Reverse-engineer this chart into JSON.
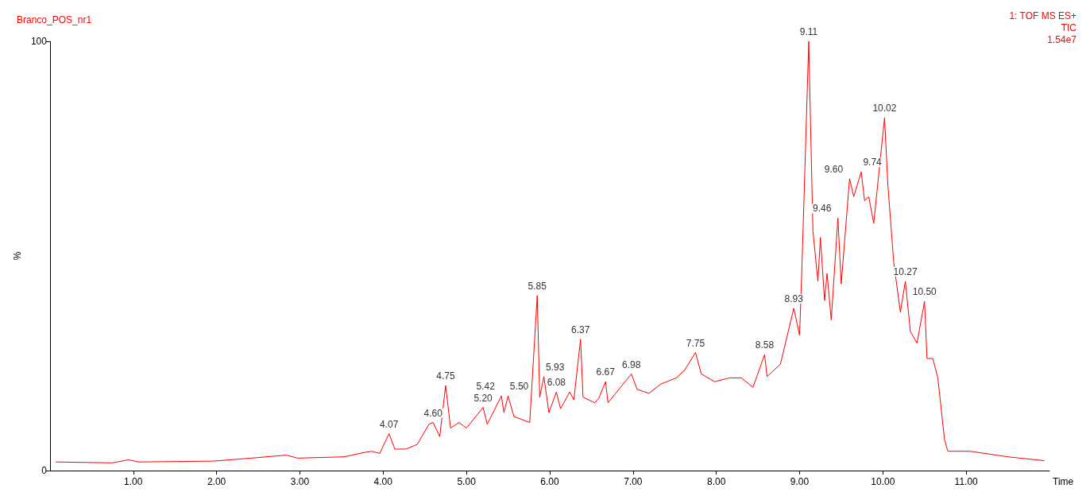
{
  "chart_data": {
    "type": "line",
    "title": "Branco_POS_nr1",
    "xlabel": "Time",
    "ylabel": "%",
    "x": [
      0.07,
      0.75,
      0.94,
      1.07,
      1.96,
      2.42,
      2.84,
      2.97,
      3.53,
      3.72,
      3.86,
      3.96,
      4.07,
      4.14,
      4.27,
      4.41,
      4.55,
      4.6,
      4.68,
      4.75,
      4.81,
      4.91,
      5.0,
      5.2,
      5.25,
      5.42,
      5.45,
      5.5,
      5.57,
      5.76,
      5.85,
      5.88,
      5.93,
      5.99,
      6.08,
      6.13,
      6.24,
      6.29,
      6.37,
      6.4,
      6.54,
      6.59,
      6.67,
      6.7,
      6.98,
      7.05,
      7.19,
      7.33,
      7.52,
      7.62,
      7.75,
      7.82,
      7.98,
      8.16,
      8.3,
      8.44,
      8.58,
      8.61,
      8.77,
      8.93,
      9.0,
      9.03,
      9.11,
      9.16,
      9.22,
      9.25,
      9.3,
      9.33,
      9.38,
      9.46,
      9.5,
      9.6,
      9.65,
      9.74,
      9.78,
      9.83,
      9.89,
      10.02,
      10.06,
      10.13,
      10.21,
      10.27,
      10.33,
      10.41,
      10.5,
      10.53,
      10.6,
      10.66,
      10.74,
      10.78,
      11.05,
      11.5,
      11.94
    ],
    "series": [
      {
        "color": "#ff0000",
        "values": [
          2.0,
          1.8,
          2.5,
          2.0,
          2.2,
          2.9,
          3.6,
          2.9,
          3.2,
          4.0,
          4.5,
          4.0,
          8.6,
          5.0,
          5.0,
          6.1,
          10.8,
          11.2,
          7.9,
          19.8,
          9.9,
          11.2,
          9.9,
          14.7,
          10.8,
          17.4,
          13.5,
          17.4,
          12.6,
          11.2,
          40.8,
          17.1,
          21.9,
          13.5,
          18.3,
          14.4,
          18.3,
          16.5,
          30.6,
          17.1,
          15.8,
          16.9,
          20.7,
          15.8,
          22.5,
          18.9,
          18.0,
          20.1,
          21.6,
          23.4,
          27.5,
          22.5,
          20.7,
          21.6,
          21.6,
          19.4,
          27.0,
          21.9,
          24.8,
          37.8,
          31.5,
          48.6,
          100,
          55.8,
          44.1,
          54.3,
          39.6,
          45.9,
          35.1,
          58.8,
          43.5,
          68.0,
          63.8,
          69.6,
          62.9,
          63.8,
          57.6,
          82.2,
          66.5,
          48.6,
          36.9,
          44.1,
          32.4,
          29.7,
          39.4,
          26.1,
          26.1,
          21.6,
          7.2,
          4.5,
          4.5,
          3.2,
          2.3
        ]
      }
    ],
    "xlim": [
      0,
      12
    ],
    "xticks": [
      {
        "value": 1,
        "label": "1.00"
      },
      {
        "value": 2,
        "label": "2.00"
      },
      {
        "value": 3,
        "label": "3.00"
      },
      {
        "value": 4,
        "label": "4.00"
      },
      {
        "value": 5,
        "label": "5.00"
      },
      {
        "value": 6,
        "label": "6.00"
      },
      {
        "value": 7,
        "label": "7.00"
      },
      {
        "value": 8,
        "label": "8.00"
      },
      {
        "value": 9,
        "label": "9.00"
      },
      {
        "value": 10,
        "label": "10.00"
      },
      {
        "value": 11,
        "label": "11.00"
      }
    ],
    "ylim": [
      0,
      100
    ],
    "yticks": [
      0,
      100
    ],
    "grid": false,
    "marker": "none",
    "line_style": "solid",
    "annotations": [
      "1: TOF MS ES+",
      "TIC",
      "1.54e7",
      {
        "text": "4.07",
        "x": 4.07,
        "y": 8.6
      },
      {
        "text": "4.60",
        "x": 4.6,
        "y": 11.2
      },
      {
        "text": "4.75",
        "x": 4.75,
        "y": 19.8
      },
      {
        "text": "5.20",
        "x": 5.2,
        "y": 14.7
      },
      {
        "text": "5.42",
        "x": 5.42,
        "y": 17.4
      },
      {
        "text": "5.50",
        "x": 5.5,
        "y": 17.4
      },
      {
        "text": "5.85",
        "x": 5.85,
        "y": 40.8
      },
      {
        "text": "5.93",
        "x": 5.93,
        "y": 21.9
      },
      {
        "text": "6.08",
        "x": 6.08,
        "y": 18.3
      },
      {
        "text": "6.37",
        "x": 6.37,
        "y": 30.6
      },
      {
        "text": "6.67",
        "x": 6.67,
        "y": 20.7
      },
      {
        "text": "6.98",
        "x": 6.98,
        "y": 22.5
      },
      {
        "text": "7.75",
        "x": 7.75,
        "y": 27.5
      },
      {
        "text": "8.58",
        "x": 8.58,
        "y": 27.0
      },
      {
        "text": "8.93",
        "x": 8.93,
        "y": 37.8
      },
      {
        "text": "9.11",
        "x": 9.11,
        "y": 100
      },
      {
        "text": "9.46",
        "x": 9.46,
        "y": 58.8
      },
      {
        "text": "9.60",
        "x": 9.6,
        "y": 68.0
      },
      {
        "text": "9.74",
        "x": 9.74,
        "y": 69.6
      },
      {
        "text": "10.02",
        "x": 10.02,
        "y": 82.2
      },
      {
        "text": "10.27",
        "x": 10.27,
        "y": 44.1
      },
      {
        "text": "10.50",
        "x": 10.5,
        "y": 39.4
      }
    ]
  }
}
